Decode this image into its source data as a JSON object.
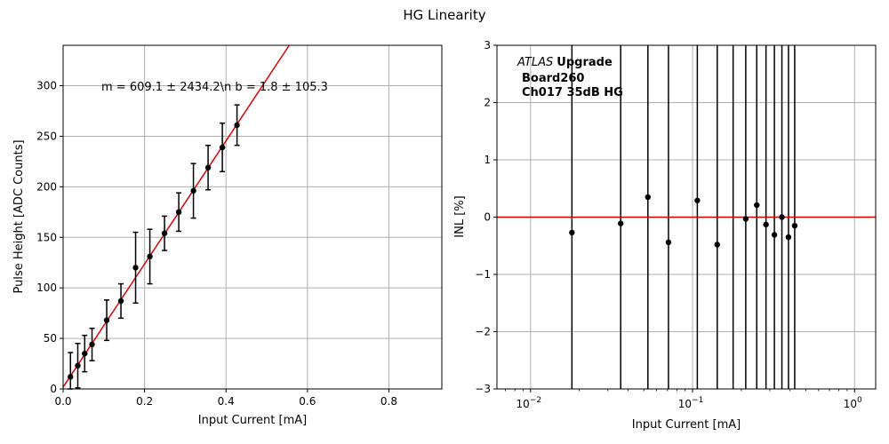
{
  "figure": {
    "suptitle": "HG Linearity"
  },
  "chart_data": [
    {
      "type": "scatter",
      "xlabel": "Input Current [mA]",
      "ylabel": "Pulse Height [ADC Counts]",
      "xlim": [
        0,
        0.93
      ],
      "ylim": [
        0,
        340
      ],
      "xticks": [
        0.0,
        0.2,
        0.4,
        0.6,
        0.8
      ],
      "xtick_labels": [
        "0.0",
        "0.2",
        "0.4",
        "0.6",
        "0.8"
      ],
      "yticks": [
        0,
        50,
        100,
        150,
        200,
        250,
        300
      ],
      "ytick_labels": [
        "0",
        "50",
        "100",
        "150",
        "200",
        "250",
        "300"
      ],
      "grid": true,
      "annotation": "m = 609.1 ± 2434.2\\n b = 1.8 ± 105.3",
      "fit_line": {
        "slope": 609.1,
        "intercept": 1.8,
        "color": "#e00000"
      },
      "series": [
        {
          "x": [
            0.018,
            0.036,
            0.053,
            0.071,
            0.107,
            0.142,
            0.178,
            0.213,
            0.249,
            0.284,
            0.32,
            0.356,
            0.391,
            0.427
          ],
          "y": [
            12,
            23,
            35,
            44,
            68,
            87,
            120,
            131,
            154,
            175,
            196,
            219,
            239,
            261
          ],
          "yerr": [
            24,
            22,
            18,
            16,
            20,
            17,
            35,
            27,
            17,
            19,
            27,
            22,
            24,
            20
          ],
          "color": "#000000"
        }
      ]
    },
    {
      "type": "scatter",
      "xlabel": "Input Current [mA]",
      "ylabel": "INL [%]",
      "xscale": "log",
      "xlim": [
        0.0062,
        1.35
      ],
      "ylim": [
        -3,
        3
      ],
      "xticks": [
        0.01,
        0.1,
        1
      ],
      "xtick_labels": [
        "10",
        "10",
        "10"
      ],
      "xtick_exponents": [
        "−2",
        "−1",
        "0"
      ],
      "yticks": [
        -3,
        -2,
        -1,
        0,
        1,
        2,
        3
      ],
      "ytick_labels": [
        "−3",
        "−2",
        "−1",
        "0",
        "1",
        "2",
        "3"
      ],
      "grid": true,
      "zero_line_color": "#e00000",
      "label_lines": {
        "prefix": "ATLAS",
        "line1": "Upgrade",
        "line2": "Board260",
        "line3": "Ch017 35dB HG"
      },
      "series": [
        {
          "x": [
            0.018,
            0.036,
            0.053,
            0.071,
            0.107,
            0.142,
            0.178,
            0.213,
            0.249,
            0.284,
            0.32,
            0.356,
            0.391,
            0.427
          ],
          "y": [
            -0.27,
            -0.11,
            0.35,
            -0.44,
            0.29,
            -0.48,
            null,
            -0.03,
            0.21,
            -0.13,
            -0.31,
            0.0,
            -0.35,
            -0.15
          ],
          "errorbars_span_full_axis": true,
          "color": "#000000"
        }
      ]
    }
  ]
}
